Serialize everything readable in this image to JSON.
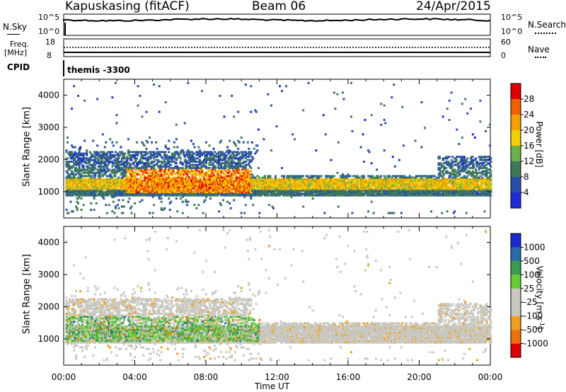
{
  "header": {
    "station": "Kapuskasing (fitACF)",
    "beam": "Beam 06",
    "date": "24/Apr/2015"
  },
  "panels": {
    "nsky_label": "N.Sky",
    "nsky_top": "10^5",
    "nsky_bottom": "10^0",
    "nsearch_label": "N.Search",
    "nsearch_top": "10^5",
    "nsearch_bottom": "10^0",
    "freq_label_1": "Freq.",
    "freq_label_2": "[MHz]",
    "freq_top": "18",
    "freq_bottom": "8",
    "nave_label": "Nave",
    "nave_top": "60",
    "nave_bottom": "0",
    "cpid_label": "CPID",
    "cpid_value": "themis -3300"
  },
  "chart_data": [
    {
      "type": "heatmap",
      "name": "Power",
      "ylabel": "Slant Range [km]",
      "xlabel": "Time UT",
      "x_ticks": [
        "00:00",
        "04:00",
        "08:00",
        "12:00",
        "16:00",
        "20:00",
        "00:00"
      ],
      "y_ticks": [
        "1000",
        "2000",
        "3000",
        "4000"
      ],
      "ylim": [
        180,
        4500
      ],
      "colorbar_label": "Power [dB]",
      "colorbar_ticks": [
        "4",
        "8",
        "12",
        "16",
        "20",
        "24",
        "28"
      ],
      "colorbar_colors": [
        "#1e2bd6",
        "#2a4fa8",
        "#3f7a58",
        "#6bb04a",
        "#f0d000",
        "#f5a000",
        "#f06000",
        "#e00000"
      ],
      "grid": false
    },
    {
      "type": "heatmap",
      "name": "Velocity",
      "ylabel": "Slant Range [km]",
      "xlabel": "Time UT",
      "x_ticks": [
        "00:00",
        "04:00",
        "08:00",
        "12:00",
        "16:00",
        "20:00",
        "00:00"
      ],
      "y_ticks": [
        "1000",
        "2000",
        "3000",
        "4000"
      ],
      "ylim": [
        180,
        4500
      ],
      "colorbar_label": "Velocity [m s^-1]",
      "colorbar_ticks": [
        "1000",
        "500",
        "100",
        "25",
        "-25",
        "-100",
        "-500",
        "-1000"
      ],
      "colorbar_colors": [
        "#1a2ad0",
        "#2a6aa8",
        "#3a9a50",
        "#66cc33",
        "#c8c8c0",
        "#c8c8c0",
        "#f0a020",
        "#f07010",
        "#e00000"
      ],
      "grid": false
    }
  ],
  "xaxis_label": "Time UT"
}
